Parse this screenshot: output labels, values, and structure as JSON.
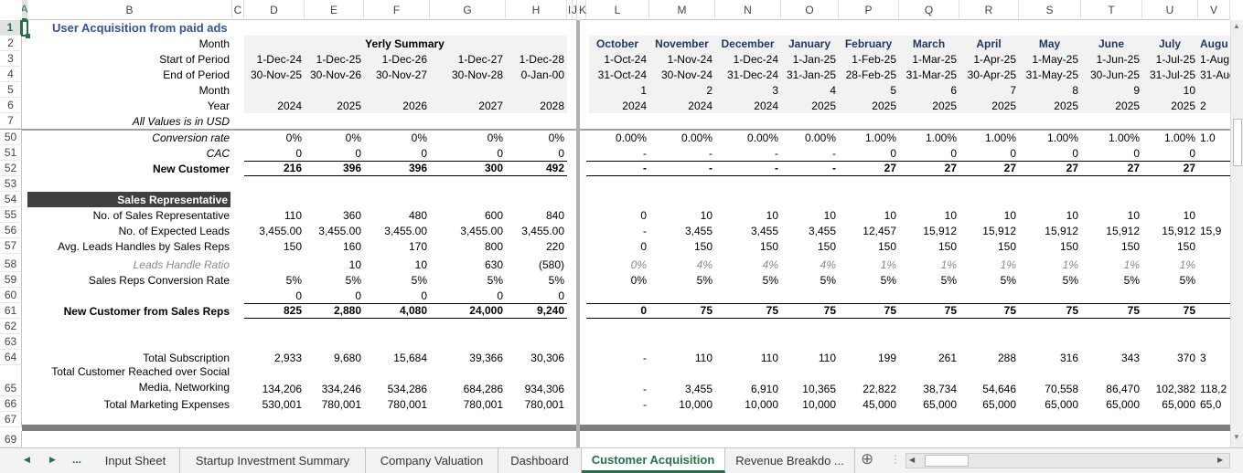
{
  "sheet": {
    "selected_cell": "A1",
    "left_columns": [
      "A",
      "B",
      "C",
      "D",
      "E",
      "F",
      "G",
      "H",
      "I",
      "J",
      "K"
    ],
    "right_columns": [
      "L",
      "M",
      "N",
      "O",
      "P",
      "Q",
      "R",
      "S",
      "T",
      "U",
      "V"
    ],
    "rows": [
      {
        "num": "1",
        "label": "User Acquisition from paid ads",
        "style": "title",
        "yearly": [],
        "monthly": []
      },
      {
        "num": "2",
        "label": "Month",
        "style": "header",
        "yearly_title": "Yerly Summary",
        "yearly": [],
        "monthly": [
          "October",
          "November",
          "December",
          "January",
          "February",
          "March",
          "April",
          "May",
          "June",
          "July",
          "Augu"
        ]
      },
      {
        "num": "3",
        "label": "Start of Period",
        "style": "header",
        "yearly": [
          "1-Dec-24",
          "1-Dec-25",
          "1-Dec-26",
          "1-Dec-27",
          "1-Dec-28"
        ],
        "monthly": [
          "1-Oct-24",
          "1-Nov-24",
          "1-Dec-24",
          "1-Jan-25",
          "1-Feb-25",
          "1-Mar-25",
          "1-Apr-25",
          "1-May-25",
          "1-Jun-25",
          "1-Jul-25",
          "1-Aug"
        ]
      },
      {
        "num": "4",
        "label": "End of Period",
        "style": "header",
        "yearly": [
          "30-Nov-25",
          "30-Nov-26",
          "30-Nov-27",
          "30-Nov-28",
          "0-Jan-00"
        ],
        "monthly": [
          "31-Oct-24",
          "30-Nov-24",
          "31-Dec-24",
          "31-Jan-25",
          "28-Feb-25",
          "31-Mar-25",
          "30-Apr-25",
          "31-May-25",
          "30-Jun-25",
          "31-Jul-25",
          "31-Aug"
        ]
      },
      {
        "num": "5",
        "label": "Month",
        "style": "header",
        "yearly": [],
        "monthly": [
          "1",
          "2",
          "3",
          "4",
          "5",
          "6",
          "7",
          "8",
          "9",
          "10",
          ""
        ]
      },
      {
        "num": "6",
        "label": "Year",
        "style": "header",
        "yearly": [
          "2024",
          "2025",
          "2026",
          "2027",
          "2028"
        ],
        "monthly": [
          "2024",
          "2024",
          "2024",
          "2025",
          "2025",
          "2025",
          "2025",
          "2025",
          "2025",
          "2025",
          "2"
        ]
      },
      {
        "num": "7",
        "label": "All Values is in USD",
        "style": "italic",
        "yearly": [],
        "monthly": []
      },
      {
        "num": "50",
        "label": "Conversion rate",
        "style": "italic",
        "yearly": [
          "0%",
          "0%",
          "0%",
          "0%",
          "0%"
        ],
        "monthly": [
          "0.00%",
          "0.00%",
          "0.00%",
          "0.00%",
          "1.00%",
          "1.00%",
          "1.00%",
          "1.00%",
          "1.00%",
          "1.00%",
          "1.0"
        ]
      },
      {
        "num": "51",
        "label": "CAC",
        "style": "italic",
        "yearly": [
          "0",
          "0",
          "0",
          "0",
          "0"
        ],
        "monthly": [
          "-",
          "-",
          "-",
          "-",
          "0",
          "0",
          "0",
          "0",
          "0",
          "0",
          ""
        ]
      },
      {
        "num": "52",
        "label": "New Customer",
        "style": "total",
        "yearly": [
          "216",
          "396",
          "396",
          "300",
          "492"
        ],
        "monthly": [
          "-",
          "-",
          "-",
          "-",
          "27",
          "27",
          "27",
          "27",
          "27",
          "27",
          ""
        ]
      },
      {
        "num": "53",
        "label": "",
        "style": "",
        "yearly": [],
        "monthly": []
      },
      {
        "num": "54",
        "label": "Sales Representative",
        "style": "section",
        "yearly": [],
        "monthly": []
      },
      {
        "num": "55",
        "label": "No. of Sales Representative",
        "style": "",
        "yearly": [
          "110",
          "360",
          "480",
          "600",
          "840"
        ],
        "monthly": [
          "0",
          "10",
          "10",
          "10",
          "10",
          "10",
          "10",
          "10",
          "10",
          "10",
          ""
        ]
      },
      {
        "num": "56",
        "label": "No. of Expected Leads",
        "style": "",
        "yearly": [
          "3,455.00",
          "3,455.00",
          "3,455.00",
          "3,455.00",
          "3,455.00"
        ],
        "monthly": [
          "-",
          "3,455",
          "3,455",
          "3,455",
          "12,457",
          "15,912",
          "15,912",
          "15,912",
          "15,912",
          "15,912",
          "15,9"
        ]
      },
      {
        "num": "57",
        "label": "Avg. Leads Handles by Sales Reps",
        "style": "",
        "yearly": [
          "150",
          "160",
          "170",
          "800",
          "220"
        ],
        "monthly": [
          "0",
          "150",
          "150",
          "150",
          "150",
          "150",
          "150",
          "150",
          "150",
          "150",
          ""
        ]
      },
      {
        "num": "58",
        "label": "Leads Handle Ratio",
        "style": "gray",
        "yearly": [
          "",
          "10",
          "10",
          "630",
          "(580)"
        ],
        "monthly": [
          "0%",
          "4%",
          "4%",
          "4%",
          "1%",
          "1%",
          "1%",
          "1%",
          "1%",
          "1%",
          ""
        ]
      },
      {
        "num": "59",
        "label": "Sales Reps Conversion Rate",
        "style": "",
        "yearly": [
          "5%",
          "5%",
          "5%",
          "5%",
          "5%"
        ],
        "monthly": [
          "0%",
          "5%",
          "5%",
          "5%",
          "5%",
          "5%",
          "5%",
          "5%",
          "5%",
          "5%",
          ""
        ]
      },
      {
        "num": "60",
        "label": "",
        "style": "",
        "yearly": [
          "0",
          "0",
          "0",
          "0",
          "0"
        ],
        "monthly": []
      },
      {
        "num": "61",
        "label": "New Customer from Sales Reps",
        "style": "total",
        "yearly": [
          "825",
          "2,880",
          "4,080",
          "24,000",
          "9,240"
        ],
        "monthly": [
          "0",
          "75",
          "75",
          "75",
          "75",
          "75",
          "75",
          "75",
          "75",
          "75",
          ""
        ]
      },
      {
        "num": "62",
        "label": "",
        "style": "",
        "yearly": [],
        "monthly": []
      },
      {
        "num": "63",
        "label": "",
        "style": "",
        "yearly": [],
        "monthly": []
      },
      {
        "num": "64",
        "label": "Total Subscription",
        "style": "",
        "yearly": [
          "2,933",
          "9,680",
          "15,684",
          "39,366",
          "30,306"
        ],
        "monthly": [
          "-",
          "110",
          "110",
          "110",
          "199",
          "261",
          "288",
          "316",
          "343",
          "370",
          "3"
        ]
      },
      {
        "num": "65",
        "label": "Total Customer Reached over Social Media, Networking",
        "style": "wrap",
        "yearly": [
          "134,206",
          "334,246",
          "534,286",
          "684,286",
          "934,306"
        ],
        "monthly": [
          "-",
          "3,455",
          "6,910",
          "10,365",
          "22,822",
          "38,734",
          "54,646",
          "70,558",
          "86,470",
          "102,382",
          "118,2"
        ]
      },
      {
        "num": "66",
        "label": "Total Marketing Expenses",
        "style": "",
        "yearly": [
          "530,001",
          "780,001",
          "780,001",
          "780,001",
          "780,001"
        ],
        "monthly": [
          "-",
          "10,000",
          "10,000",
          "10,000",
          "45,000",
          "65,000",
          "65,000",
          "65,000",
          "65,000",
          "65,000",
          "65,0"
        ]
      },
      {
        "num": "67",
        "label": "",
        "style": "",
        "yearly": [],
        "monthly": []
      },
      {
        "num": "69",
        "label": "",
        "style": "",
        "yearly": [],
        "monthly": []
      }
    ]
  },
  "tabs": {
    "nav_more": "...",
    "items": [
      {
        "label": "Input Sheet",
        "active": false
      },
      {
        "label": "Startup Investment Summary",
        "active": false
      },
      {
        "label": "Company Valuation",
        "active": false
      },
      {
        "label": "Dashboard",
        "active": false
      },
      {
        "label": "Customer Acquisition",
        "active": true
      },
      {
        "label": "Revenue Breakdo ...",
        "active": false
      }
    ],
    "add_sheet": "⊕"
  },
  "colors": {
    "accent": "#217346",
    "title": "#2f5496",
    "month": "#1f3864",
    "section_bg": "#404040",
    "shade": "#f2f2f2"
  }
}
